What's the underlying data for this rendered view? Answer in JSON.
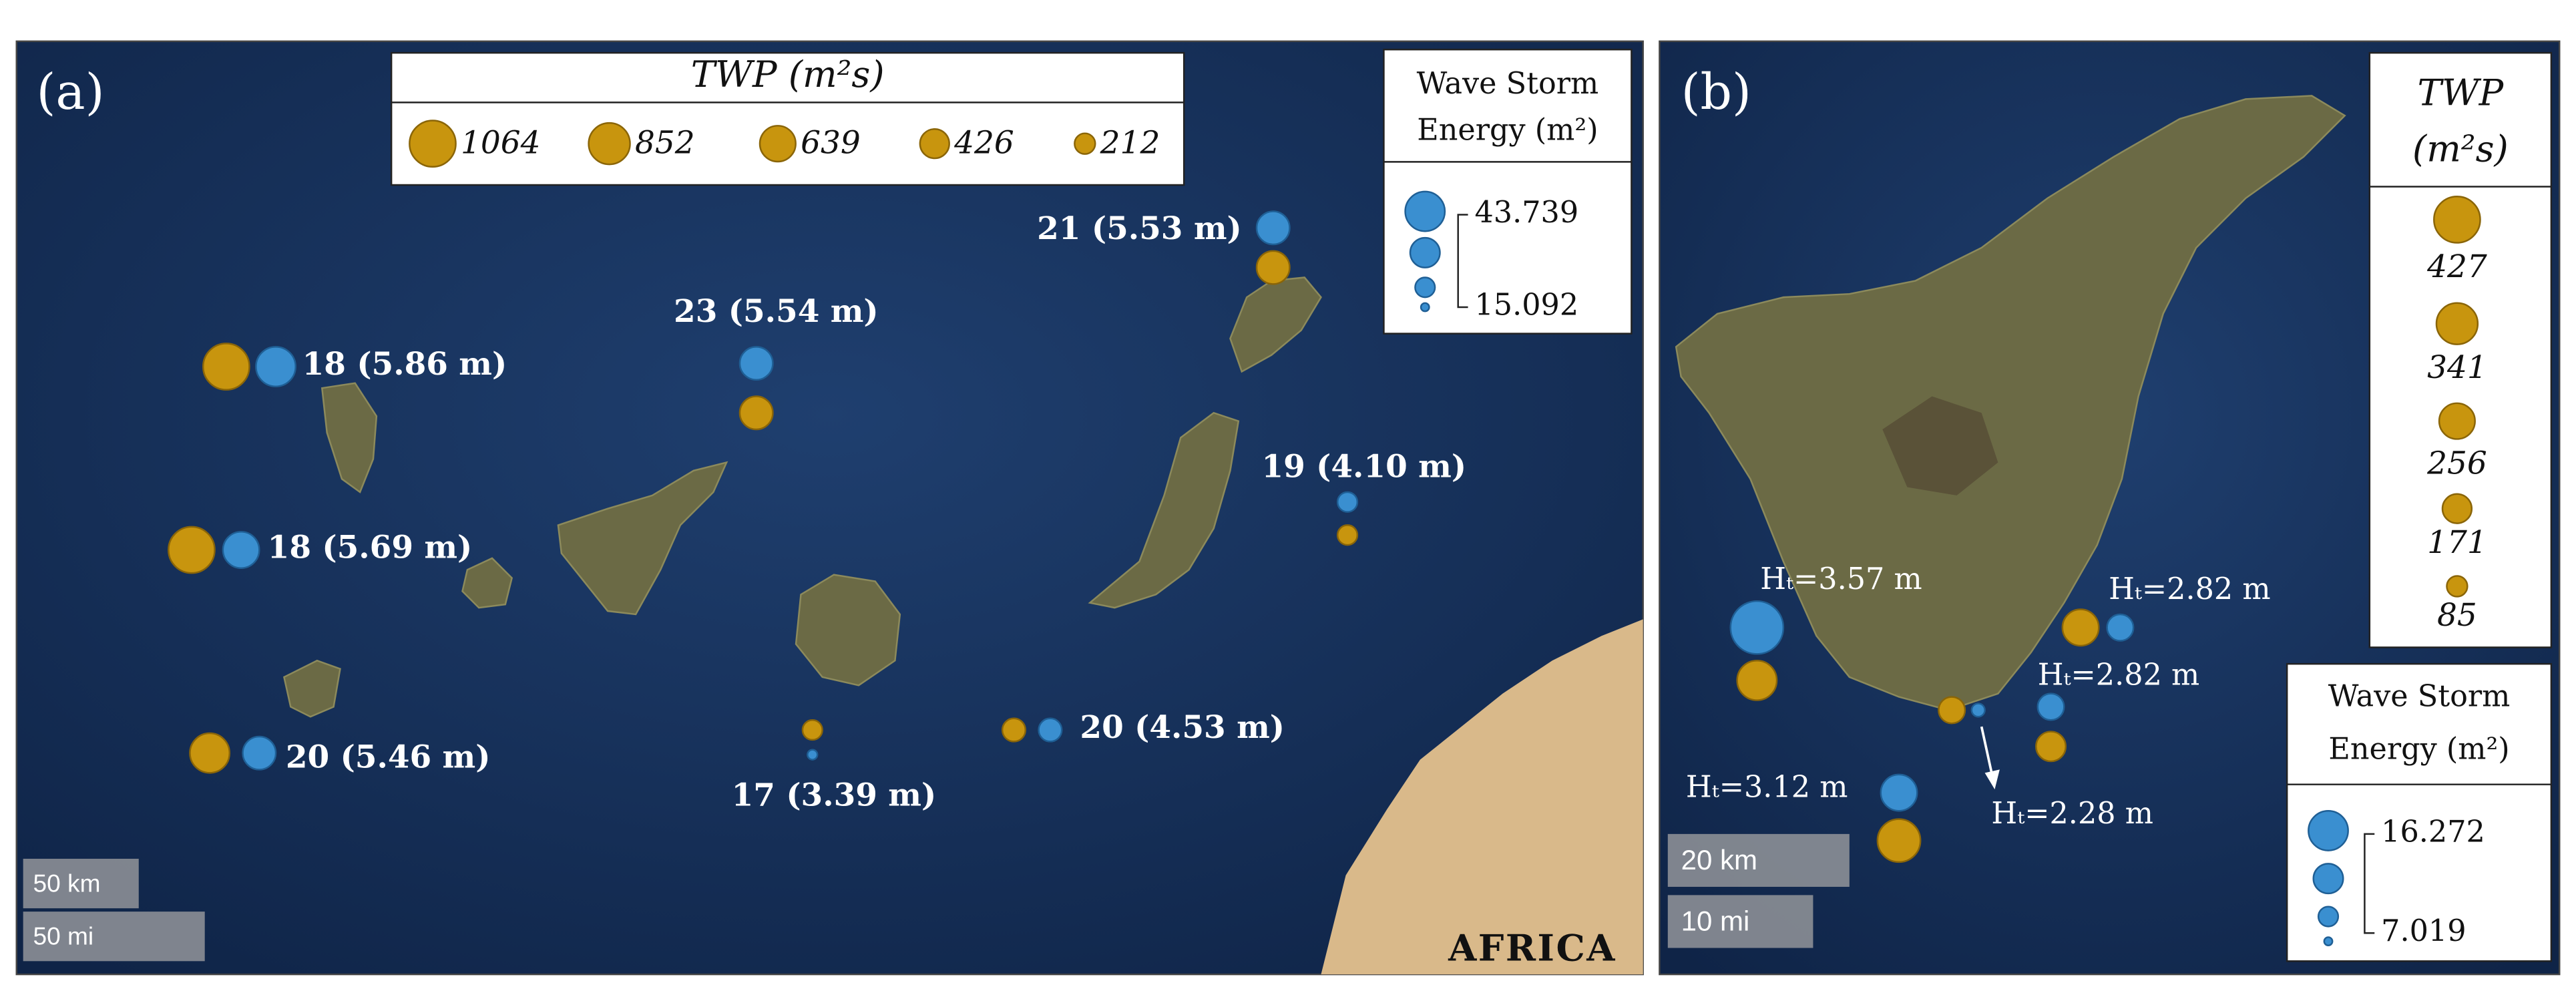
{
  "panels": [
    {
      "label": "(a)",
      "twp_legend": {
        "title": "TWP (m²s)",
        "values": [
          1064,
          852,
          639,
          426,
          212
        ]
      },
      "energy_legend": {
        "title": [
          "Wave Storm",
          "Energy (m²)"
        ],
        "max": 43.739,
        "min": 15.092
      },
      "points": [
        {
          "label": "21 (5.53 m)"
        },
        {
          "label": "23 (5.54 m)"
        },
        {
          "label": "18 (5.86 m)"
        },
        {
          "label": "18 (5.69 m)"
        },
        {
          "label": "20 (5.46 m)"
        },
        {
          "label": "19 (4.10 m)"
        },
        {
          "label": "17 (3.39 m)"
        },
        {
          "label": "20 (4.53 m)"
        }
      ],
      "scale_bars": [
        "50 km",
        "50 mi"
      ],
      "region": "AFRICA"
    },
    {
      "label": "(b)",
      "twp_legend": {
        "title": [
          "TWP",
          "(m²s)"
        ],
        "values": [
          427,
          341,
          256,
          171,
          85
        ]
      },
      "energy_legend": {
        "title": [
          "Wave Storm",
          "Energy (m²)"
        ],
        "max": 16.272,
        "min": 7.019
      },
      "points": [
        {
          "label": "Hₜ=3.57 m"
        },
        {
          "label": "Hₜ=2.82 m"
        },
        {
          "label": "Hₜ=2.82 m"
        },
        {
          "label": "Hₜ=2.28 m"
        },
        {
          "label": "Hₜ=3.12 m"
        }
      ],
      "scale_bars": [
        "20 km",
        "10 mi"
      ]
    }
  ]
}
